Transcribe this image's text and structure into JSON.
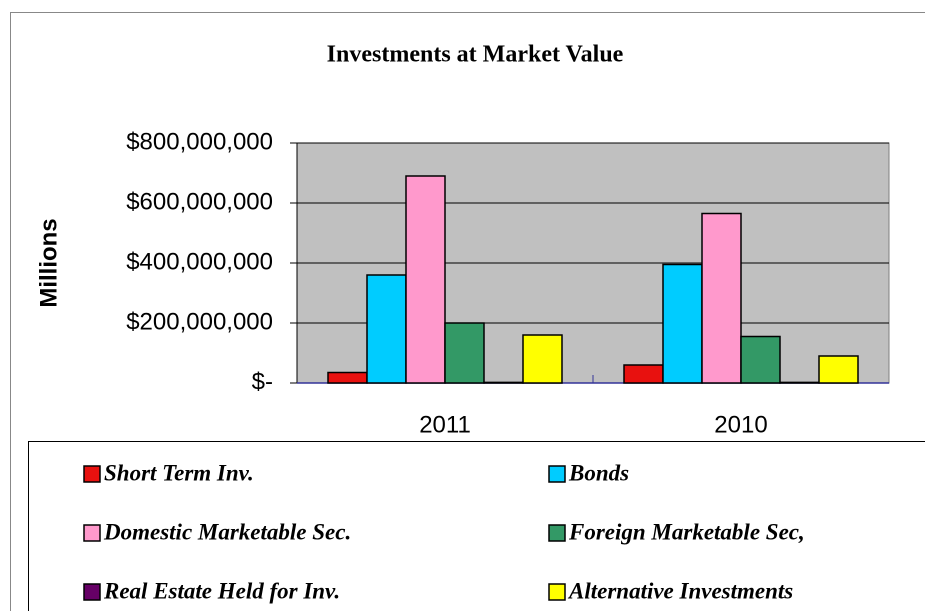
{
  "chart_data": {
    "type": "bar",
    "title": "Investments at Market Value",
    "y_label": "Millions",
    "categories": [
      "2011",
      "2010"
    ],
    "series": [
      {
        "name": "Short Term Inv.",
        "color": "#e8110f",
        "values": [
          35000000,
          60000000
        ]
      },
      {
        "name": "Bonds",
        "color": "#00ccff",
        "values": [
          360000000,
          395000000
        ]
      },
      {
        "name": "Domestic Marketable Sec.",
        "color": "#ff99cc",
        "values": [
          690000000,
          565000000
        ]
      },
      {
        "name": "Foreign Marketable Sec,",
        "color": "#339966",
        "values": [
          200000000,
          155000000
        ]
      },
      {
        "name": "Real Estate Held for Inv.",
        "color": "#660066",
        "values": [
          2000000,
          2000000
        ]
      },
      {
        "name": "Alternative Investments",
        "color": "#ffff00",
        "values": [
          160000000,
          90000000
        ]
      }
    ],
    "ylim": [
      0,
      800000000
    ],
    "yticks": [
      {
        "value": 0,
        "label": "$-"
      },
      {
        "value": 200000000,
        "label": "$200,000,000"
      },
      {
        "value": 400000000,
        "label": "$400,000,000"
      },
      {
        "value": 600000000,
        "label": "$600,000,000"
      },
      {
        "value": 800000000,
        "label": "$800,000,000"
      }
    ],
    "grid": true,
    "plot_background": "#c0c0c0",
    "legend": "bottom"
  }
}
